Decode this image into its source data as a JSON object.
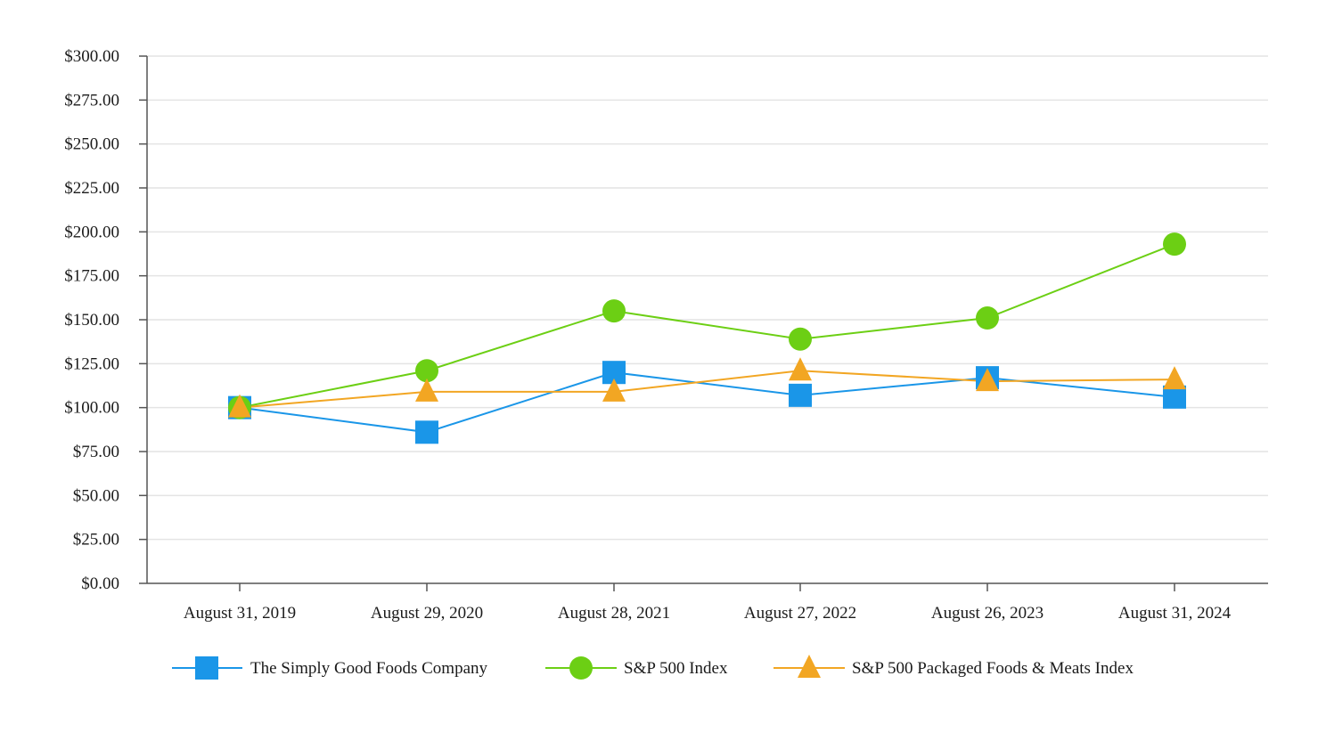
{
  "chart_data": {
    "type": "line",
    "title": "",
    "xlabel": "",
    "ylabel": "",
    "categories": [
      "August 31, 2019",
      "August 29, 2020",
      "August 28, 2021",
      "August 27, 2022",
      "August 26, 2023",
      "August 31, 2024"
    ],
    "ylim": [
      0,
      300
    ],
    "yticks": [
      0,
      25,
      50,
      75,
      100,
      125,
      150,
      175,
      200,
      225,
      250,
      275,
      300
    ],
    "ytick_labels": [
      "$0.00",
      "$25.00",
      "$50.00",
      "$75.00",
      "$100.00",
      "$125.00",
      "$150.00",
      "$175.00",
      "$200.00",
      "$225.00",
      "$250.00",
      "$275.00",
      "$300.00"
    ],
    "grid": true,
    "legend_position": "bottom",
    "series": [
      {
        "name": "The Simply Good Foods Company",
        "marker": "square",
        "color": "#1a96e8",
        "values": [
          100,
          86,
          120,
          107,
          117,
          106
        ]
      },
      {
        "name": "S&P 500 Index",
        "marker": "circle",
        "color": "#6ccf14",
        "values": [
          100,
          121,
          155,
          139,
          151,
          193
        ]
      },
      {
        "name": "S&P 500 Packaged Foods & Meats Index",
        "marker": "triangle",
        "color": "#f2a623",
        "values": [
          100,
          109,
          109,
          121,
          115,
          116
        ]
      }
    ]
  }
}
